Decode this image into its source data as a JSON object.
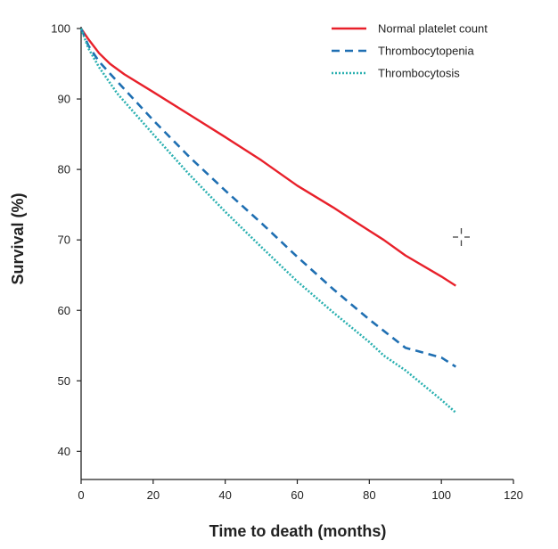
{
  "chart_data": {
    "type": "line",
    "xlabel": "Time to death (months)",
    "ylabel": "Survival (%)",
    "xlim": [
      0,
      120
    ],
    "ylim": [
      36,
      100
    ],
    "xticks": [
      0,
      20,
      40,
      60,
      80,
      100,
      120
    ],
    "yticks": [
      40,
      50,
      60,
      70,
      80,
      90,
      100
    ],
    "grid": false,
    "legend_position": "top-right",
    "series": [
      {
        "name": "Normal platelet count",
        "color": "#e8202a",
        "dash": "solid",
        "x": [
          0,
          2,
          5,
          8,
          12,
          20,
          30,
          40,
          50,
          60,
          70,
          80,
          84,
          90,
          100,
          104
        ],
        "y": [
          100,
          98.5,
          96.5,
          95,
          93.5,
          91,
          87.8,
          84.6,
          81.3,
          77.7,
          74.6,
          71.3,
          70,
          67.8,
          64.8,
          63.5
        ]
      },
      {
        "name": "Thrombocytopenia",
        "color": "#1f6fb2",
        "dash": "dashed",
        "x": [
          0,
          2,
          5,
          10,
          20,
          30,
          40,
          50,
          60,
          70,
          80,
          90,
          100,
          104
        ],
        "y": [
          100,
          97.6,
          95.3,
          92.5,
          87,
          81.8,
          77,
          72.4,
          67.6,
          63,
          58.7,
          54.7,
          53.3,
          52
        ]
      },
      {
        "name": "Thrombocytosis",
        "color": "#2ab0b0",
        "dash": "dotted",
        "x": [
          0,
          2,
          5,
          10,
          20,
          30,
          40,
          50,
          60,
          70,
          80,
          84,
          90,
          100,
          104
        ],
        "y": [
          100,
          97.2,
          94.5,
          90.8,
          85,
          79.3,
          74,
          69,
          64.1,
          59.7,
          55.5,
          53.6,
          51.5,
          47.3,
          45.5
        ]
      }
    ]
  },
  "axes": {
    "xlabel": "Time to death (months)",
    "ylabel": "Survival (%)"
  },
  "legend": [
    {
      "label": "Normal platelet count",
      "color": "#e8202a",
      "dash": "solid"
    },
    {
      "label": "Thrombocytopenia",
      "color": "#1f6fb2",
      "dash": "dashed"
    },
    {
      "label": "Thrombocytosis",
      "color": "#2ab0b0",
      "dash": "dotted"
    }
  ]
}
